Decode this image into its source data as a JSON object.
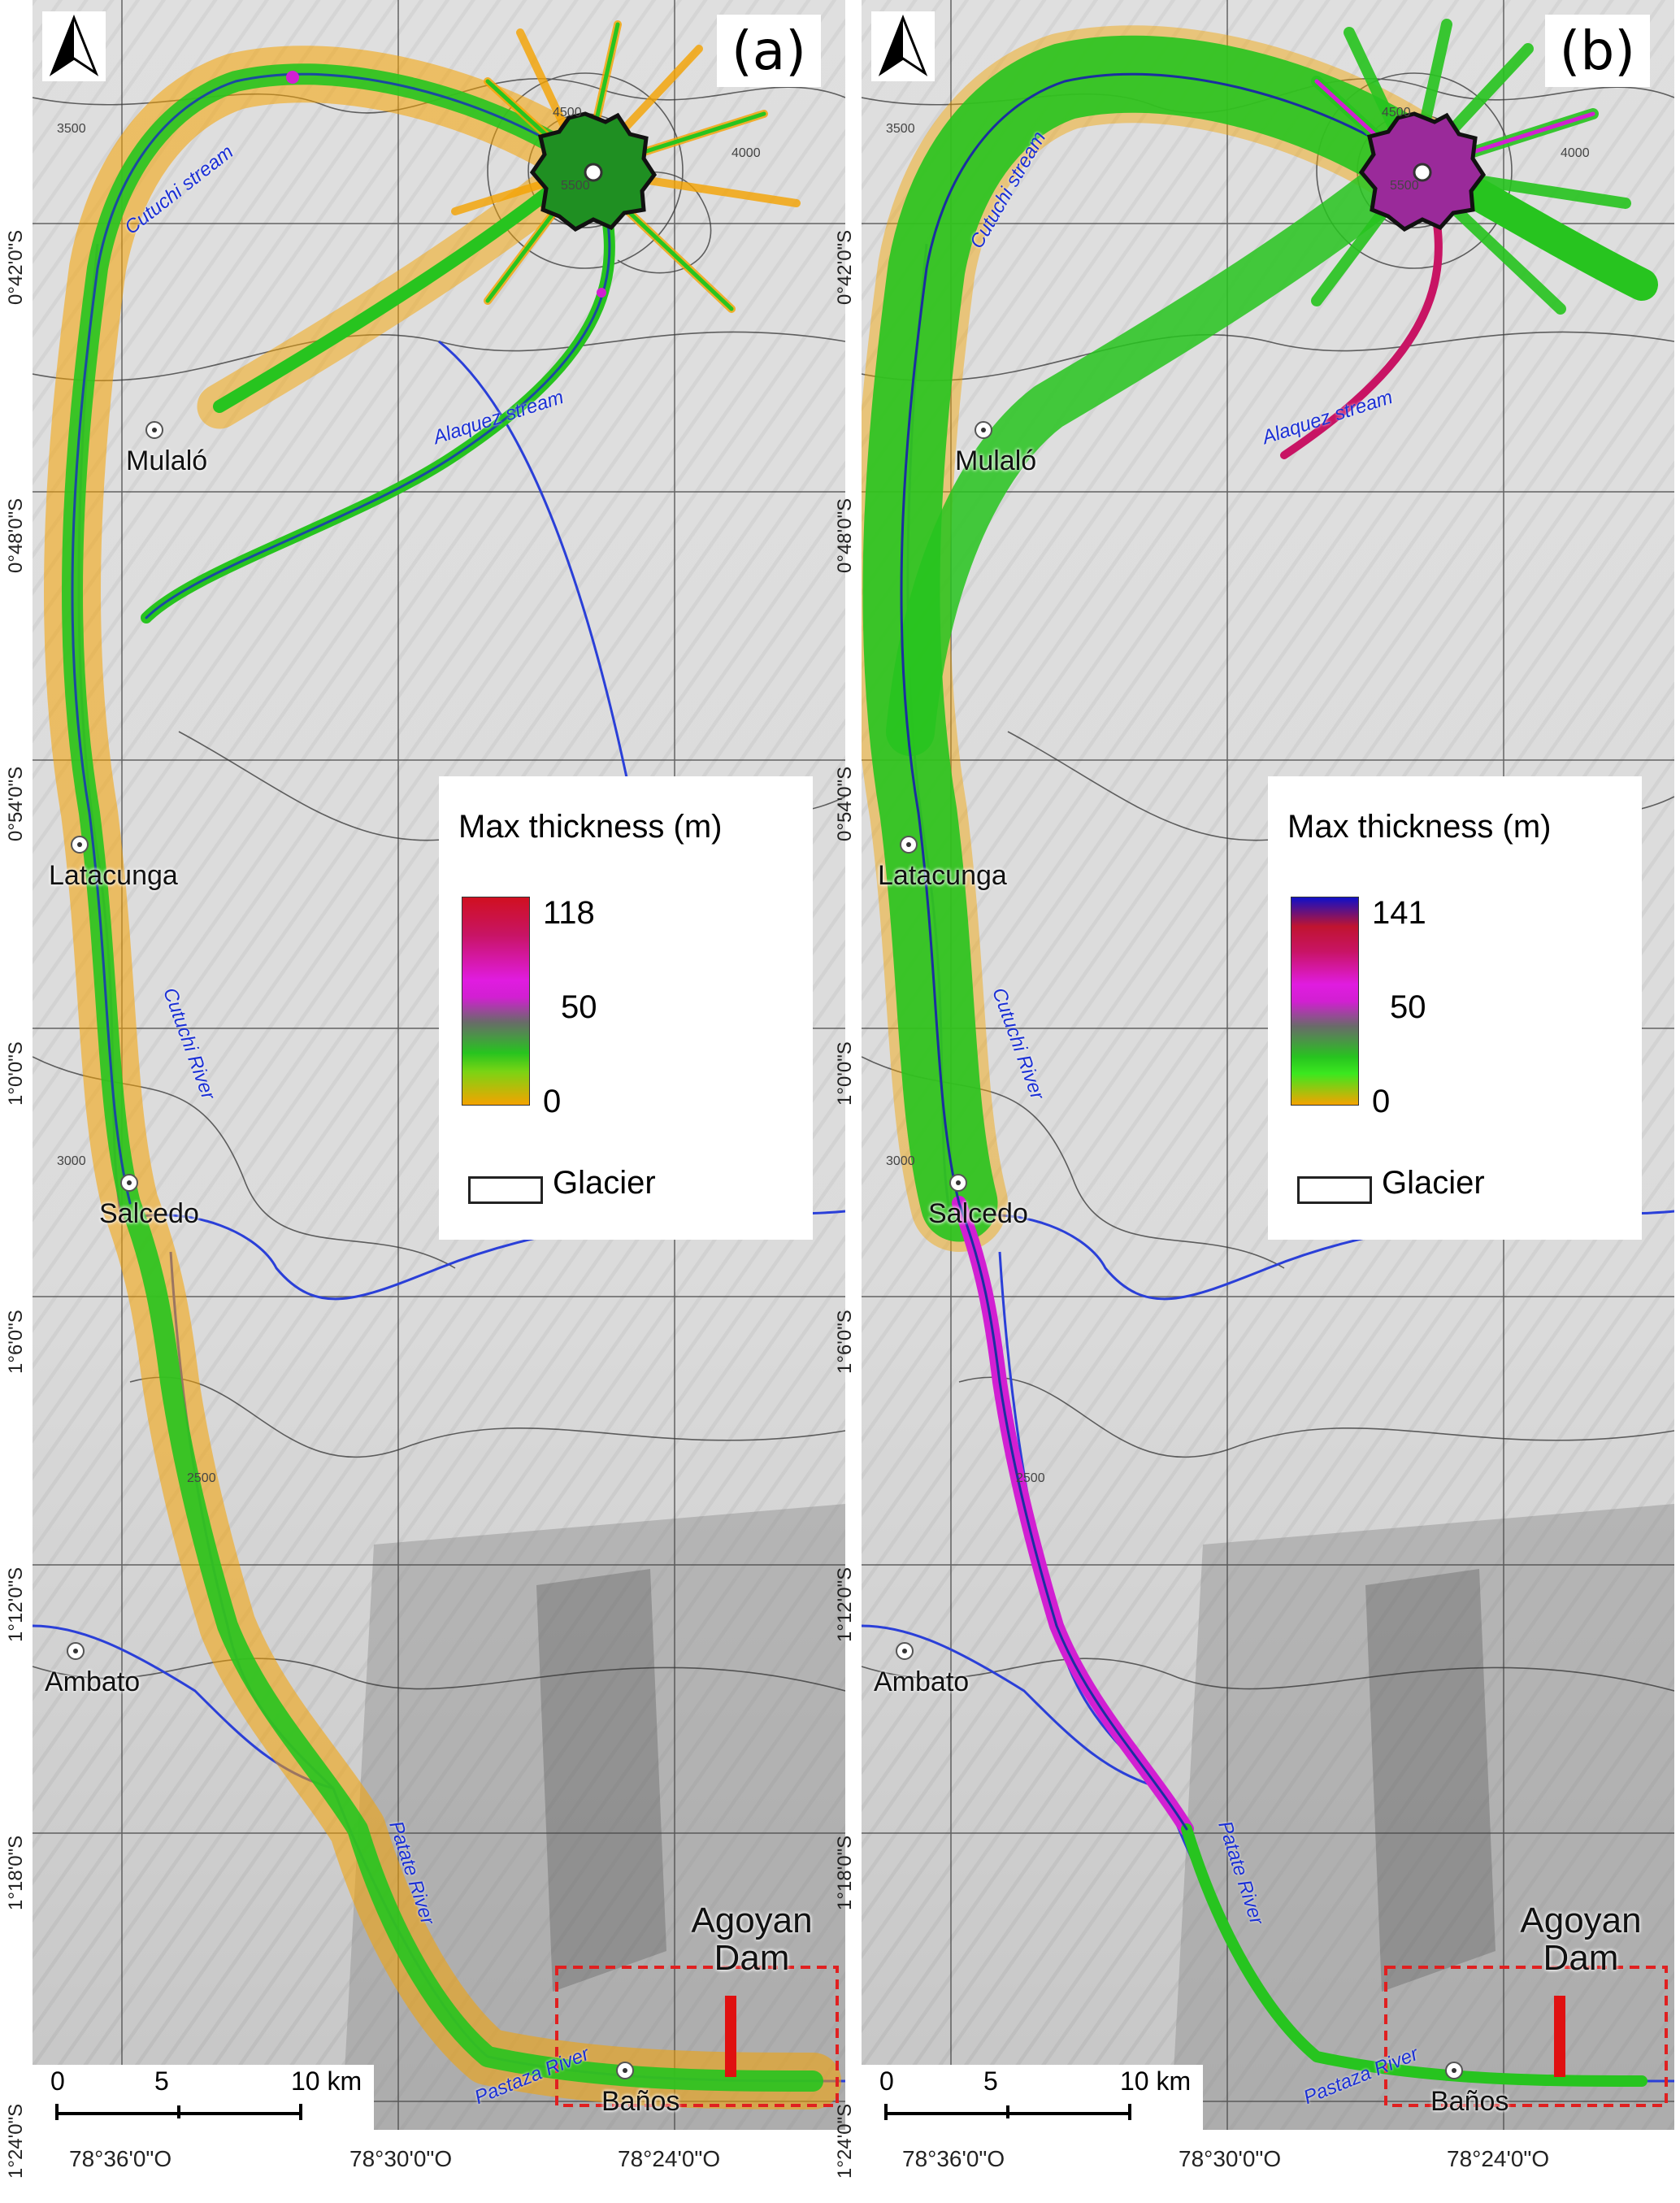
{
  "panels": [
    {
      "letter": "(a)",
      "legend": {
        "title": "Max thickness (m)",
        "max_label": "118",
        "mid_label": "50",
        "min_label": "0",
        "glacier_label": "Glacier"
      },
      "colors": {
        "flow_low": "#f5a300",
        "flow_mid": "#27c41f",
        "flow_high": "#d21fd2",
        "top": "#d01020"
      }
    },
    {
      "letter": "(b)",
      "legend": {
        "title": "Max thickness (m)",
        "max_label": "141",
        "mid_label": "50",
        "min_label": "0",
        "glacier_label": "Glacier"
      },
      "colors": {
        "flow_low": "#f5a300",
        "flow_mid": "#27c41f",
        "flow_high": "#d21fd2",
        "top": "#1010c8"
      }
    }
  ],
  "towns": [
    "Mulaló",
    "Latacunga",
    "Salcedo",
    "Ambato",
    "Baños"
  ],
  "rivers": [
    "Cutuchi stream",
    "Alaquez stream",
    "Cutuchi River",
    "Patate River",
    "Pastaza River"
  ],
  "dam_label": "Agoyan Dam",
  "scale_bar": {
    "ticks": [
      "0",
      "5",
      "10 km"
    ]
  },
  "lat_labels": [
    "0°42'0\"S",
    "0°48'0\"S",
    "0°54'0\"S",
    "1°0'0\"S",
    "1°6'0\"S",
    "1°12'0\"S",
    "1°18'0\"S",
    "1°24'0\"S"
  ],
  "lon_labels": [
    "78°36'0\"O",
    "78°30'0\"O",
    "78°24'0\"O"
  ],
  "contour_labels": [
    "3500",
    "4000",
    "4500",
    "5500",
    "3000",
    "2500"
  ]
}
